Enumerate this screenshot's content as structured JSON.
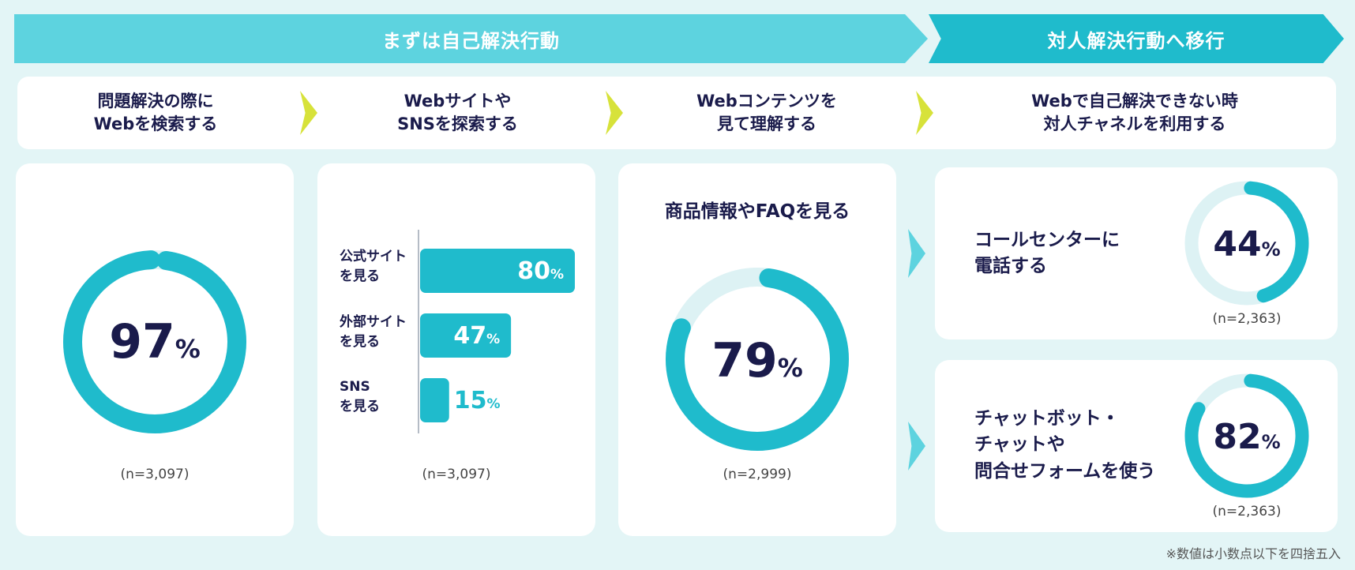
{
  "banners": {
    "self": "まずは自己解決行動",
    "person": "対人解決行動へ移行"
  },
  "steps": [
    "問題解決の際に\nWebを検索する",
    "Webサイトや\nSNSを探索する",
    "Webコンテンツを\n見て理解する",
    "Webで自己解決できない時\n対人チャネルを利用する"
  ],
  "colors": {
    "accent": "#1fbbcc",
    "light": "#5dd3df",
    "track": "#ddf2f4",
    "arrow": "#d7e23a",
    "text": "#1a1b4b"
  },
  "chart_data": [
    {
      "type": "pie",
      "label": "",
      "values": [
        97
      ],
      "unit": "%",
      "n": "(n=3,097)"
    },
    {
      "type": "bar",
      "categories": [
        "公式サイト\nを見る",
        "外部サイト\nを見る",
        "SNS\nを見る"
      ],
      "values": [
        80,
        47,
        15
      ],
      "unit": "%",
      "n": "(n=3,097)"
    },
    {
      "type": "pie",
      "title": "商品情報やFAQを見る",
      "values": [
        79
      ],
      "unit": "%",
      "n": "(n=2,999)"
    },
    {
      "type": "pie",
      "title": "コールセンターに\n電話する",
      "values": [
        44
      ],
      "unit": "%",
      "n": "(n=2,363)"
    },
    {
      "type": "pie",
      "title": "チャットボット・\nチャットや\n問合せフォームを使う",
      "values": [
        82
      ],
      "unit": "%",
      "n": "(n=2,363)"
    }
  ],
  "footnote": "※数値は小数点以下を四捨五入"
}
